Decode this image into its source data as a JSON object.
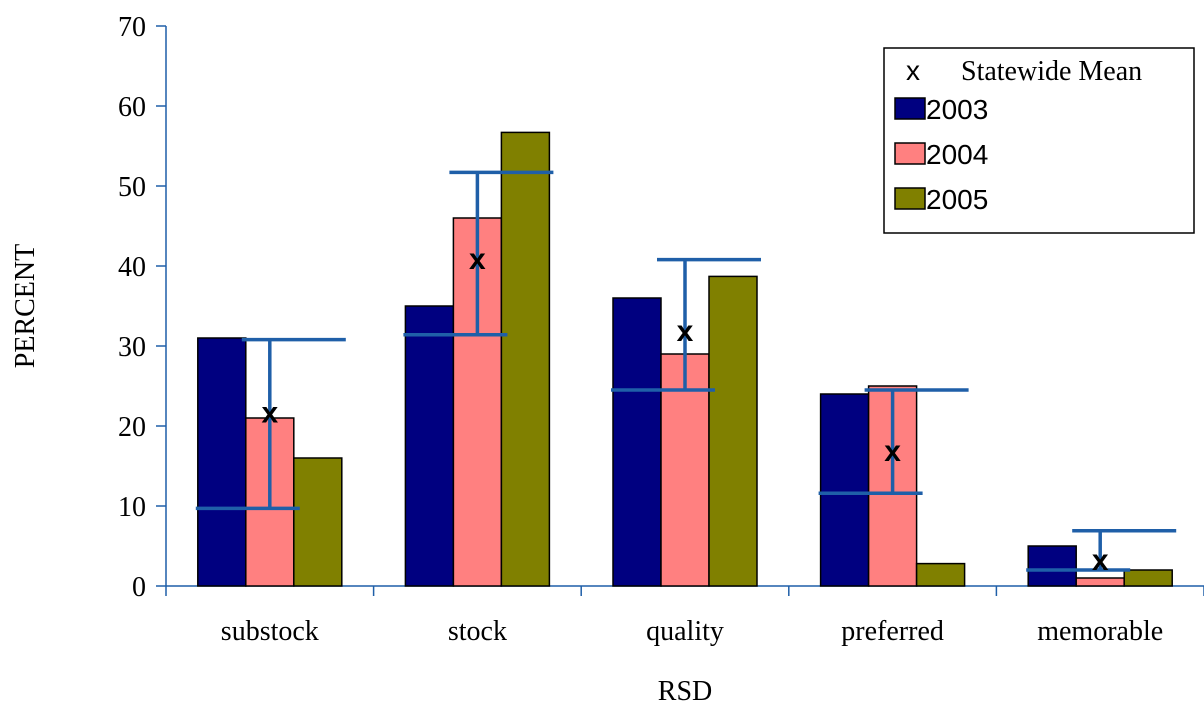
{
  "chart_data": {
    "type": "bar",
    "xlabel": "RSD",
    "ylabel": "PERCENT",
    "ylim": [
      0,
      70
    ],
    "yticks": [
      0,
      10,
      20,
      30,
      40,
      50,
      60,
      70
    ],
    "categories": [
      "substock",
      "stock",
      "quality",
      "preferred",
      "memorable"
    ],
    "series": [
      {
        "name": "2003",
        "color": "#000080",
        "values": [
          31,
          35,
          36,
          24,
          5
        ]
      },
      {
        "name": "2004",
        "color": "#FF8080",
        "values": [
          21,
          46,
          29,
          25,
          1
        ]
      },
      {
        "name": "2005",
        "color": "#808000",
        "values": [
          16,
          56.7,
          38.7,
          2.8,
          2
        ]
      }
    ],
    "statewide_mean": {
      "name": "Statewide Mean",
      "marker": "x",
      "errorbar_color": "#1F5FA8",
      "values": [
        21.8,
        41,
        32,
        17,
        3.4
      ],
      "low": [
        9.7,
        31.4,
        24.5,
        11.6,
        2.0
      ],
      "high": [
        30.8,
        51.7,
        40.8,
        24.5,
        6.9
      ]
    },
    "legend_position": "top-right",
    "grid": false
  }
}
